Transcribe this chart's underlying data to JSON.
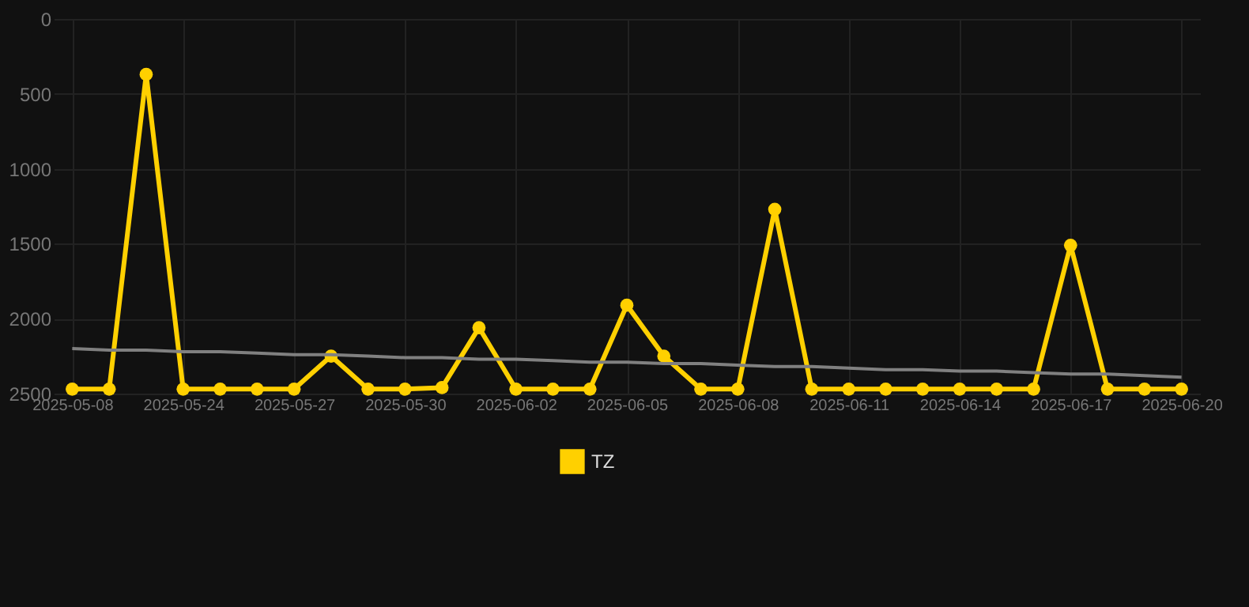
{
  "chart_data": {
    "type": "line",
    "categories": [
      "2025-05-08",
      null,
      null,
      "2025-05-24",
      null,
      null,
      "2025-05-27",
      null,
      null,
      "2025-05-30",
      null,
      null,
      "2025-06-02",
      null,
      null,
      "2025-06-05",
      null,
      null,
      "2025-06-08",
      null,
      null,
      "2025-06-11",
      null,
      null,
      "2025-06-14",
      null,
      null,
      "2025-06-17",
      null,
      null,
      "2025-06-20"
    ],
    "series": [
      {
        "name": "TZ",
        "color": "#ffd000",
        "marker": "circle",
        "values": [
          2470,
          2470,
          370,
          2470,
          2470,
          2470,
          2470,
          2250,
          2470,
          2470,
          2460,
          2060,
          2470,
          2470,
          2470,
          1910,
          2250,
          2470,
          2470,
          1270,
          2470,
          2470,
          2470,
          2470,
          2470,
          2470,
          2470,
          1510,
          2470,
          2470,
          2470
        ]
      },
      {
        "type": "line",
        "color": "#808080",
        "marker": "none",
        "values": [
          2200,
          2210,
          2210,
          2220,
          2220,
          2230,
          2240,
          2240,
          2250,
          2260,
          2260,
          2270,
          2270,
          2280,
          2290,
          2290,
          2300,
          2300,
          2310,
          2320,
          2320,
          2330,
          2340,
          2340,
          2350,
          2350,
          2360,
          2370,
          2370,
          2380,
          2390
        ]
      }
    ],
    "ylim": [
      2500,
      0
    ],
    "yticks": [
      0,
      500,
      1000,
      1500,
      2000,
      2500
    ],
    "grid": true,
    "legend": "bottom"
  }
}
